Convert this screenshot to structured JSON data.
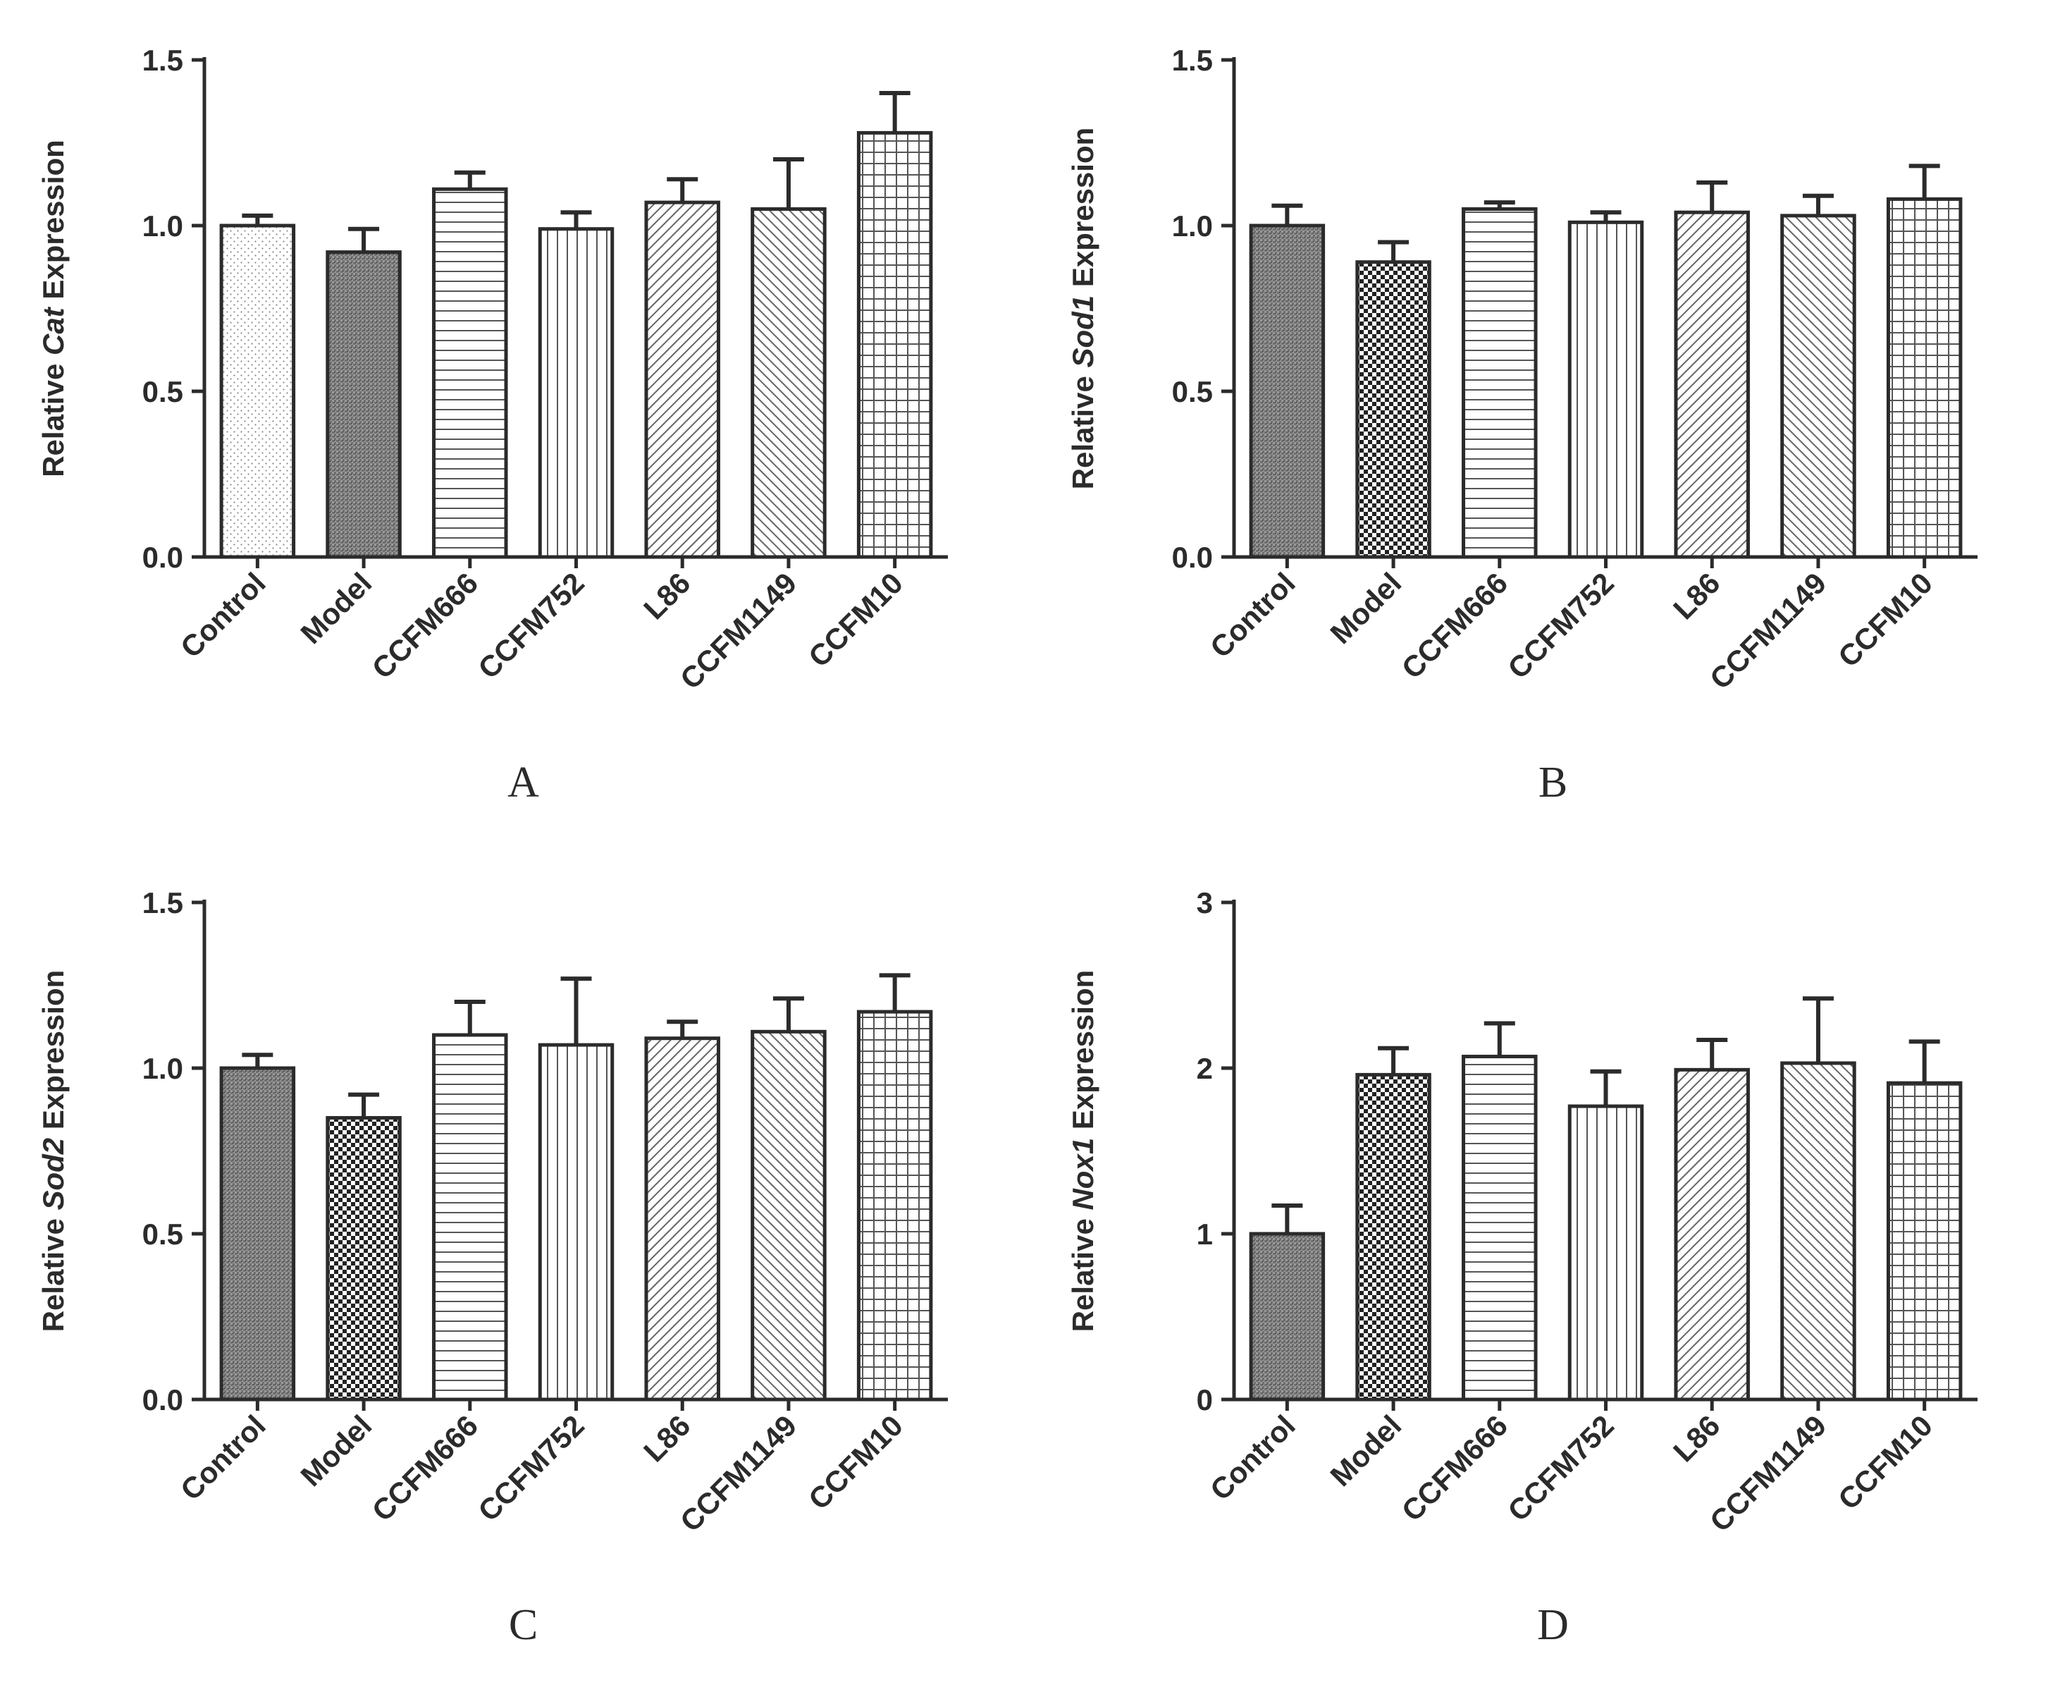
{
  "chart_data": [
    {
      "type": "bar",
      "panel": "A",
      "ylabel": {
        "prefix": "Relative ",
        "gene": "Cat",
        "suffix": " Expression"
      },
      "ylim": [
        0,
        1.5
      ],
      "yticks": [
        "0.0",
        "0.5",
        "1.0",
        "1.5"
      ],
      "ytick_values": [
        0,
        0.5,
        1.0,
        1.5
      ],
      "categories": [
        "Control",
        "Model",
        "CCFM666",
        "CCFM752",
        "L86",
        "CCFM1149",
        "CCFM10"
      ],
      "values": [
        1.0,
        0.92,
        1.11,
        0.99,
        1.07,
        1.05,
        1.28
      ],
      "errors": [
        0.03,
        0.07,
        0.05,
        0.05,
        0.07,
        0.15,
        0.12
      ],
      "patterns": [
        "dots",
        "dense",
        "hlines",
        "vlines",
        "diag",
        "diag2",
        "grid"
      ]
    },
    {
      "type": "bar",
      "panel": "B",
      "ylabel": {
        "prefix": "Relative ",
        "gene": "Sod1",
        "suffix": " Expression"
      },
      "ylim": [
        0,
        1.5
      ],
      "yticks": [
        "0.0",
        "0.5",
        "1.0",
        "1.5"
      ],
      "ytick_values": [
        0,
        0.5,
        1.0,
        1.5
      ],
      "categories": [
        "Control",
        "Model",
        "CCFM666",
        "CCFM752",
        "L86",
        "CCFM1149",
        "CCFM10"
      ],
      "values": [
        1.0,
        0.89,
        1.05,
        1.01,
        1.04,
        1.03,
        1.08
      ],
      "errors": [
        0.06,
        0.06,
        0.02,
        0.03,
        0.09,
        0.06,
        0.1
      ],
      "patterns": [
        "dense",
        "checker",
        "hlines",
        "vlines",
        "diag",
        "diag2",
        "grid"
      ]
    },
    {
      "type": "bar",
      "panel": "C",
      "ylabel": {
        "prefix": "Relative ",
        "gene": "Sod2",
        "suffix": " Expression"
      },
      "ylim": [
        0,
        1.5
      ],
      "yticks": [
        "0.0",
        "0.5",
        "1.0",
        "1.5"
      ],
      "ytick_values": [
        0,
        0.5,
        1.0,
        1.5
      ],
      "categories": [
        "Control",
        "Model",
        "CCFM666",
        "CCFM752",
        "L86",
        "CCFM1149",
        "CCFM10"
      ],
      "values": [
        1.0,
        0.85,
        1.1,
        1.07,
        1.09,
        1.11,
        1.17
      ],
      "errors": [
        0.04,
        0.07,
        0.1,
        0.2,
        0.05,
        0.1,
        0.11
      ],
      "patterns": [
        "dense",
        "checker",
        "hlines",
        "vlines",
        "diag",
        "diag2",
        "grid"
      ]
    },
    {
      "type": "bar",
      "panel": "D",
      "ylabel": {
        "prefix": "Relative ",
        "gene": "Nox1",
        "suffix": " Expression"
      },
      "ylim": [
        0,
        3
      ],
      "yticks": [
        "0",
        "1",
        "2",
        "3"
      ],
      "ytick_values": [
        0,
        1,
        2,
        3
      ],
      "categories": [
        "Control",
        "Model",
        "CCFM666",
        "CCFM752",
        "L86",
        "CCFM1149",
        "CCFM10"
      ],
      "values": [
        1.0,
        1.96,
        2.07,
        1.77,
        1.99,
        2.03,
        1.91
      ],
      "errors": [
        0.17,
        0.16,
        0.2,
        0.21,
        0.18,
        0.39,
        0.25
      ],
      "patterns": [
        "dense",
        "checker",
        "hlines",
        "vlines",
        "diag",
        "diag2",
        "grid"
      ]
    }
  ]
}
